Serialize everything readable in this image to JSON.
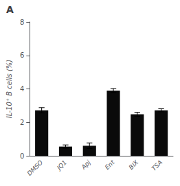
{
  "chart_data": {
    "type": "bar",
    "title": "A",
    "categories": [
      "DMSO",
      "JQ1",
      "Apj",
      "Ent",
      "BIX",
      "TSA"
    ],
    "values": [
      2.72,
      0.55,
      0.6,
      3.9,
      2.48,
      2.72
    ],
    "errors": [
      0.16,
      0.1,
      0.17,
      0.12,
      0.12,
      0.09
    ],
    "color": "#0a0a0a",
    "ylabel": "IL-10⁺ B cells (%)",
    "ylim": [
      0,
      8
    ],
    "yticks": [
      0,
      2,
      4,
      6,
      8
    ],
    "grid": false
  }
}
